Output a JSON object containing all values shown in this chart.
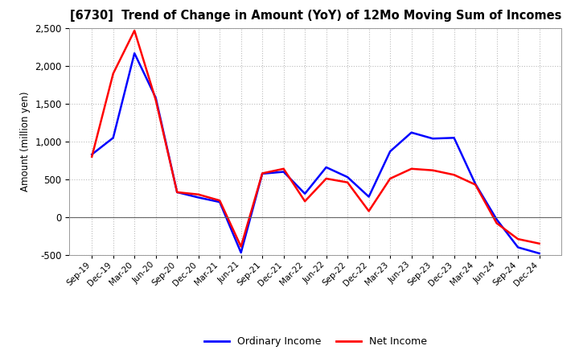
{
  "title": "[6730]  Trend of Change in Amount (YoY) of 12Mo Moving Sum of Incomes",
  "ylabel": "Amount (million yen)",
  "x_labels": [
    "Sep-19",
    "Dec-19",
    "Mar-20",
    "Jun-20",
    "Sep-20",
    "Dec-20",
    "Mar-21",
    "Jun-21",
    "Sep-21",
    "Dec-21",
    "Mar-22",
    "Jun-22",
    "Sep-22",
    "Dec-22",
    "Mar-23",
    "Jun-23",
    "Sep-23",
    "Dec-23",
    "Mar-24",
    "Jun-24",
    "Sep-24",
    "Dec-24"
  ],
  "ordinary_income": [
    830,
    1050,
    2170,
    1580,
    330,
    260,
    200,
    -470,
    575,
    600,
    310,
    660,
    530,
    270,
    870,
    1120,
    1040,
    1050,
    440,
    -30,
    -400,
    -480
  ],
  "net_income": [
    800,
    1900,
    2470,
    1550,
    330,
    300,
    220,
    -390,
    580,
    640,
    210,
    510,
    460,
    80,
    510,
    640,
    620,
    560,
    430,
    -80,
    -290,
    -350
  ],
  "ordinary_income_color": "#0000ff",
  "net_income_color": "#ff0000",
  "ylim": [
    -500,
    2500
  ],
  "yticks": [
    -500,
    0,
    500,
    1000,
    1500,
    2000,
    2500
  ],
  "legend_labels": [
    "Ordinary Income",
    "Net Income"
  ],
  "bg_color": "#ffffff",
  "grid_color": "#bbbbbb",
  "linewidth": 1.8,
  "title_fontsize": 10.5,
  "figsize": [
    7.2,
    4.4
  ],
  "dpi": 100
}
